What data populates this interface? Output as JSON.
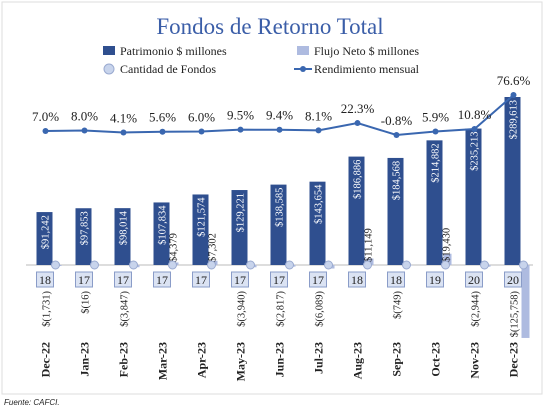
{
  "chart_data": {
    "type": "bar",
    "title": "Fondos de Retorno Total",
    "source": "Fuente: CAFCI.",
    "categories": [
      "Dec-22",
      "Jan-23",
      "Feb-23",
      "Mar-23",
      "Apr-23",
      "May-23",
      "Jun-23",
      "Jul-23",
      "Aug-23",
      "Sep-23",
      "Oct-23",
      "Nov-23",
      "Dec-23"
    ],
    "series": [
      {
        "name": "Patrimonio $ millones",
        "color": "#2f4f8f",
        "values": [
          91242,
          97853,
          98014,
          107834,
          121574,
          129221,
          138585,
          143654,
          186886,
          184568,
          214882,
          235213,
          289613
        ],
        "value_labels": [
          "$91,242",
          "$97,853",
          "$98,014",
          "$107,834",
          "$121,574",
          "$129,221",
          "$138,585",
          "$143,654",
          "$186,886",
          "$184,568",
          "$214,882",
          "$235,213",
          "$289,613"
        ]
      },
      {
        "name": "Flujo Neto $ millones",
        "color": "#aebbe0",
        "values": [
          -1731,
          -16,
          -3847,
          4379,
          7302,
          -3940,
          -2817,
          -6089,
          11149,
          -749,
          19430,
          -2944,
          -125758
        ],
        "value_labels": [
          "$(1,731)",
          "$(16)",
          "$(3,847)",
          "$4,379",
          "$7,302",
          "$(3,940)",
          "$(2,817)",
          "$(6,089)",
          "$11,149",
          "$(749)",
          "$19,430",
          "$(2,944)",
          "$(125,758)"
        ]
      },
      {
        "name": "Cantidad de Fondos",
        "color": "#c8d4ec",
        "values": [
          18,
          17,
          17,
          17,
          17,
          17,
          17,
          17,
          18,
          18,
          19,
          20,
          20
        ]
      },
      {
        "name": "Rendimiento mensual",
        "color": "#3a67b0",
        "values": [
          7.0,
          8.0,
          4.1,
          5.6,
          6.0,
          9.5,
          9.4,
          8.1,
          22.3,
          -0.8,
          5.9,
          10.8,
          76.6
        ],
        "value_labels": [
          "7.0%",
          "8.0%",
          "4.1%",
          "5.6%",
          "6.0%",
          "9.5%",
          "9.4%",
          "8.1%",
          "22.3%",
          "-0.8%",
          "5.9%",
          "10.8%",
          "76.6%"
        ]
      }
    ]
  }
}
